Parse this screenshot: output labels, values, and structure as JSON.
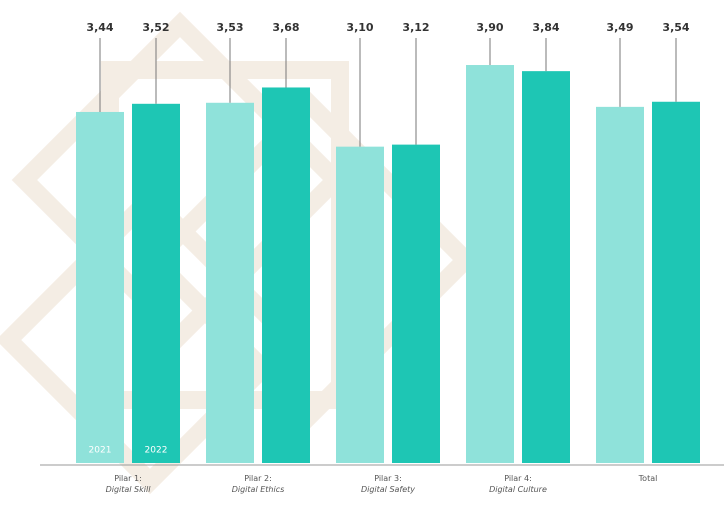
{
  "chart_data": {
    "type": "bar",
    "categories": [
      "Pilar 1:\nDigital Skill",
      "Pilar 2:\nDigital Ethics",
      "Pilar 3:\nDigital Safety",
      "Pilar 4:\nDigital Culture",
      "Total"
    ],
    "series": [
      {
        "name": "2021",
        "color": "#8fe2da",
        "values": [
          3.44,
          3.53,
          3.1,
          3.9,
          3.49
        ],
        "value_labels": [
          "3,44",
          "3,53",
          "3,10",
          "3,90",
          "3,49"
        ]
      },
      {
        "name": "2022",
        "color": "#1ec6b4",
        "values": [
          3.52,
          3.68,
          3.12,
          3.84,
          3.54
        ],
        "value_labels": [
          "3,52",
          "3,68",
          "3,12",
          "3,84",
          "3,54"
        ]
      }
    ],
    "ylim": [
      0,
      4.4
    ]
  }
}
